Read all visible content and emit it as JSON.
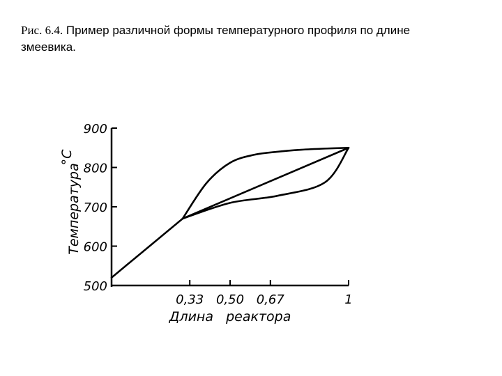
{
  "caption": {
    "prefix": "Рис. 6.4.",
    "text": "Пример различной формы температурного профиля по длине змеевика."
  },
  "chart_data": {
    "type": "line",
    "title": "",
    "xlabel": "Длина   реактора",
    "ylabel": "Температура",
    "yunit": "°C",
    "xlim": [
      0,
      1
    ],
    "ylim": [
      500,
      900
    ],
    "xticks": [
      0.33,
      0.5,
      0.67,
      1
    ],
    "xtick_labels": [
      "0,33",
      "0,50",
      "0,67",
      "1"
    ],
    "yticks": [
      500,
      600,
      700,
      800,
      900
    ],
    "ytick_labels": [
      "500",
      "600",
      "700",
      "800",
      "900"
    ],
    "grid": false,
    "series": [
      {
        "x": [
          0,
          0.1,
          0.2,
          0.3
        ],
        "y": [
          520,
          570,
          620,
          670
        ]
      },
      {
        "x": [
          0.3,
          0.4,
          0.5,
          0.6,
          0.7,
          0.8,
          0.9,
          1.0
        ],
        "y": [
          670,
          760,
          812,
          832,
          840,
          845,
          848,
          850
        ]
      },
      {
        "x": [
          0.3,
          0.5,
          0.7,
          0.9,
          1.0
        ],
        "y": [
          670,
          710,
          728,
          762,
          850
        ]
      },
      {
        "x": [
          0.3,
          1.0
        ],
        "y": [
          670,
          850
        ]
      }
    ]
  }
}
